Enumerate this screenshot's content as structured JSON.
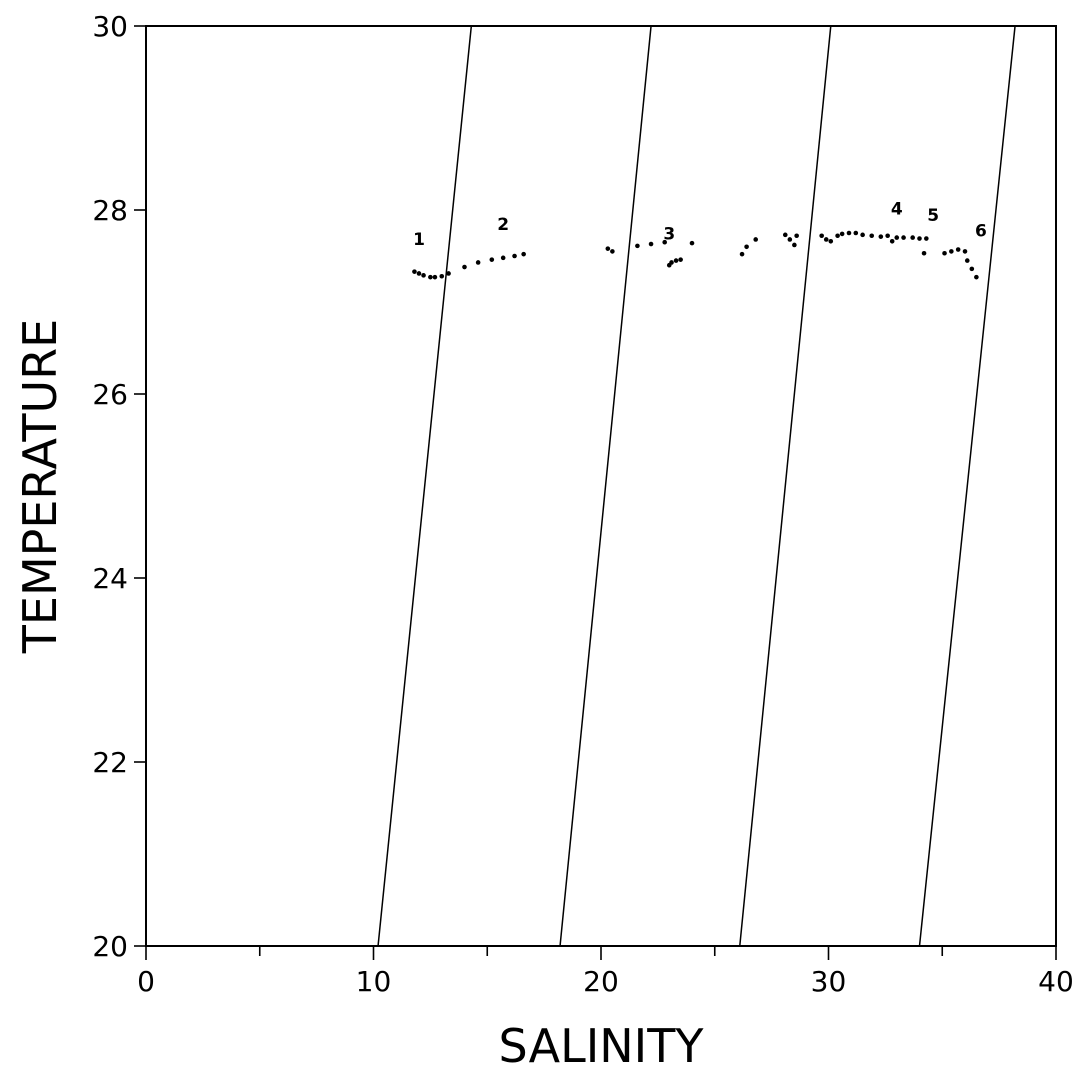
{
  "chart_data": {
    "type": "scatter",
    "xlabel": "SALINITY",
    "ylabel": "TEMPERATURE",
    "xlim": [
      0,
      40
    ],
    "ylim": [
      20,
      30
    ],
    "x_ticks": [
      0,
      10,
      20,
      30,
      40
    ],
    "x_minor_ticks": [
      5,
      15,
      25,
      35
    ],
    "y_ticks": [
      20,
      22,
      24,
      26,
      28,
      30
    ],
    "grid": false,
    "series": [
      {
        "values": [
          [
            11.8,
            27.33
          ],
          [
            12.0,
            27.31
          ],
          [
            12.2,
            27.29
          ],
          [
            12.5,
            27.27
          ],
          [
            12.7,
            27.27
          ],
          [
            13.0,
            27.28
          ],
          [
            13.3,
            27.31
          ],
          [
            14.0,
            27.38
          ],
          [
            14.6,
            27.43
          ],
          [
            15.2,
            27.46
          ],
          [
            15.7,
            27.48
          ],
          [
            16.2,
            27.5
          ],
          [
            16.6,
            27.52
          ],
          [
            20.3,
            27.58
          ],
          [
            20.5,
            27.55
          ],
          [
            21.6,
            27.61
          ],
          [
            22.2,
            27.63
          ],
          [
            22.8,
            27.65
          ],
          [
            23.0,
            27.4
          ],
          [
            23.1,
            27.43
          ],
          [
            23.3,
            27.45
          ],
          [
            23.5,
            27.46
          ],
          [
            24.0,
            27.64
          ],
          [
            26.2,
            27.52
          ],
          [
            26.4,
            27.6
          ],
          [
            26.8,
            27.68
          ],
          [
            28.1,
            27.73
          ],
          [
            28.3,
            27.68
          ],
          [
            28.5,
            27.62
          ],
          [
            28.6,
            27.72
          ],
          [
            29.7,
            27.72
          ],
          [
            29.9,
            27.68
          ],
          [
            30.1,
            27.66
          ],
          [
            30.4,
            27.72
          ],
          [
            30.6,
            27.74
          ],
          [
            30.9,
            27.75
          ],
          [
            31.2,
            27.75
          ],
          [
            31.5,
            27.73
          ],
          [
            31.9,
            27.72
          ],
          [
            32.3,
            27.71
          ],
          [
            32.6,
            27.72
          ],
          [
            32.8,
            27.66
          ],
          [
            33.0,
            27.7
          ],
          [
            33.3,
            27.7
          ],
          [
            33.7,
            27.7
          ],
          [
            34.0,
            27.69
          ],
          [
            34.3,
            27.69
          ],
          [
            34.2,
            27.53
          ],
          [
            35.1,
            27.53
          ],
          [
            35.4,
            27.55
          ],
          [
            35.7,
            27.57
          ],
          [
            36.0,
            27.55
          ],
          [
            36.1,
            27.45
          ],
          [
            36.3,
            27.36
          ],
          [
            36.5,
            27.27
          ]
        ]
      }
    ],
    "reference_lines": [
      {
        "points": [
          [
            10.2,
            20
          ],
          [
            14.3,
            30
          ]
        ]
      },
      {
        "points": [
          [
            18.2,
            20
          ],
          [
            22.2,
            30
          ]
        ]
      },
      {
        "points": [
          [
            26.1,
            20
          ],
          [
            30.1,
            30
          ]
        ]
      },
      {
        "points": [
          [
            34.0,
            20
          ],
          [
            38.2,
            30
          ]
        ]
      }
    ],
    "annotations": [
      {
        "text": "1",
        "x": 12.0,
        "y": 27.62
      },
      {
        "text": "2",
        "x": 15.7,
        "y": 27.78
      },
      {
        "text": "3",
        "x": 23.0,
        "y": 27.68
      },
      {
        "text": "4",
        "x": 33.0,
        "y": 27.95
      },
      {
        "text": "5",
        "x": 34.6,
        "y": 27.88
      },
      {
        "text": "6",
        "x": 36.7,
        "y": 27.71
      }
    ]
  }
}
